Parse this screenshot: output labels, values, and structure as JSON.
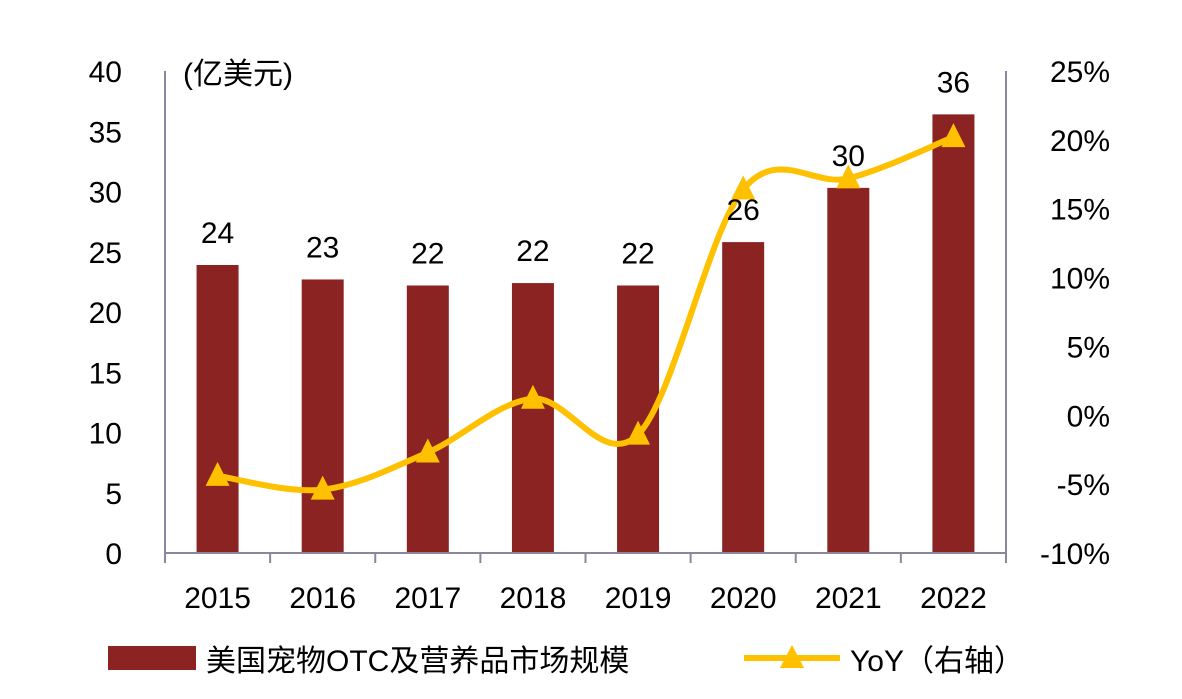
{
  "chart_data": {
    "type": "bar+line",
    "unit_label": "(亿美元)",
    "categories": [
      "2015",
      "2016",
      "2017",
      "2018",
      "2019",
      "2020",
      "2021",
      "2022"
    ],
    "series": [
      {
        "name": "美国宠物OTC及营养品市场规模",
        "type": "bar",
        "axis": "left",
        "values": [
          23.9,
          22.7,
          22.2,
          22.4,
          22.2,
          25.8,
          30.3,
          36.4
        ],
        "data_labels": [
          "24",
          "23",
          "22",
          "22",
          "22",
          "26",
          "30",
          "36"
        ],
        "color": "#8B2323"
      },
      {
        "name": "YoY（右轴）",
        "type": "line",
        "axis": "right",
        "marker": "triangle",
        "values": [
          -4.4,
          -5.4,
          -2.7,
          1.2,
          -1.4,
          16.4,
          17.2,
          20.2
        ],
        "color": "#FFC000"
      }
    ],
    "left_axis": {
      "range": [
        0,
        40
      ],
      "ticks": [
        "0",
        "5",
        "10",
        "15",
        "20",
        "25",
        "30",
        "35",
        "40"
      ]
    },
    "right_axis": {
      "range": [
        -10,
        25
      ],
      "ticks": [
        "-10%",
        "-5%",
        "0%",
        "5%",
        "10%",
        "15%",
        "20%",
        "25%"
      ]
    },
    "grid": false,
    "legend": "bottom"
  }
}
